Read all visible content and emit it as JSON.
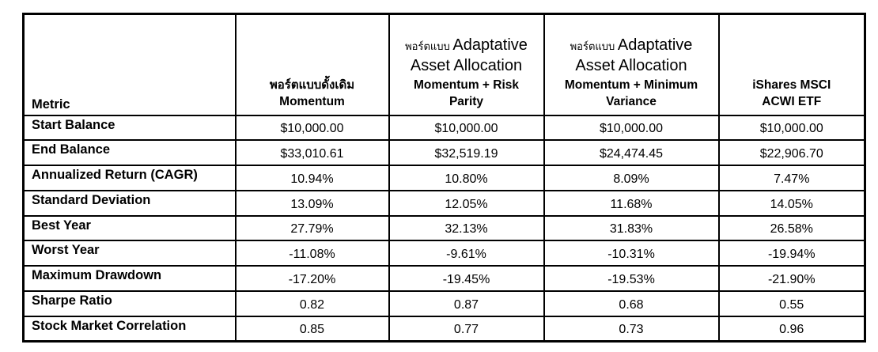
{
  "page": {
    "background_color": "#ffffff",
    "border_color": "#000000",
    "text_color": "#000000"
  },
  "chart_data": {
    "type": "table",
    "metric_header": "Metric",
    "columns": [
      {
        "id": "traditional-momentum",
        "full_label": "พอร์ตแบบดั้งเดิม Momentum",
        "header_lines": [
          {
            "segments": [
              {
                "text": "พอร์ตแบบดั้งเดิม",
                "style": "thai-bold"
              }
            ]
          },
          {
            "segments": [
              {
                "text": "Momentum",
                "style": "bold"
              }
            ]
          }
        ]
      },
      {
        "id": "adaptative-momentum-risk-parity",
        "full_label": "พอร์ตแบบ Adaptative Asset Allocation Momentum + Risk Parity",
        "header_lines": [
          {
            "segments": [
              {
                "text": "พอร์ตแบบ ",
                "style": "thai-small"
              },
              {
                "text": "Adaptative",
                "style": "large"
              }
            ]
          },
          {
            "segments": [
              {
                "text": "Asset Allocation",
                "style": "large"
              }
            ]
          },
          {
            "segments": [
              {
                "text": "Momentum + Risk",
                "style": "bold"
              }
            ]
          },
          {
            "segments": [
              {
                "text": "Parity",
                "style": "bold"
              }
            ]
          }
        ]
      },
      {
        "id": "adaptative-momentum-minimum-variance",
        "full_label": "พอร์ตแบบ Adaptative Asset Allocation Momentum + Minimum Variance",
        "header_lines": [
          {
            "segments": [
              {
                "text": "พอร์ตแบบ ",
                "style": "thai-small"
              },
              {
                "text": "Adaptative",
                "style": "large"
              }
            ]
          },
          {
            "segments": [
              {
                "text": "Asset Allocation",
                "style": "large"
              }
            ]
          },
          {
            "segments": [
              {
                "text": "Momentum + Minimum",
                "style": "bold"
              }
            ]
          },
          {
            "segments": [
              {
                "text": "Variance",
                "style": "bold"
              }
            ]
          }
        ]
      },
      {
        "id": "ishares-msci-acwi-etf",
        "full_label": "iShares MSCI ACWI ETF",
        "header_lines": [
          {
            "segments": [
              {
                "text": "iShares MSCI",
                "style": "bold"
              }
            ]
          },
          {
            "segments": [
              {
                "text": "ACWI ETF",
                "style": "bold"
              }
            ]
          }
        ]
      }
    ],
    "rows": [
      {
        "metric": "Start Balance",
        "values": [
          "$10,000.00",
          "$10,000.00",
          "$10,000.00",
          "$10,000.00"
        ]
      },
      {
        "metric": "End Balance",
        "values": [
          "$33,010.61",
          "$32,519.19",
          "$24,474.45",
          "$22,906.70"
        ]
      },
      {
        "metric": "Annualized Return (CAGR)",
        "values": [
          "10.94%",
          "10.80%",
          "8.09%",
          "7.47%"
        ]
      },
      {
        "metric": "Standard Deviation",
        "values": [
          "13.09%",
          "12.05%",
          "11.68%",
          "14.05%"
        ]
      },
      {
        "metric": "Best Year",
        "values": [
          "27.79%",
          "32.13%",
          "31.83%",
          "26.58%"
        ]
      },
      {
        "metric": "Worst Year",
        "values": [
          "-11.08%",
          "-9.61%",
          "-10.31%",
          "-19.94%"
        ]
      },
      {
        "metric": "Maximum Drawdown",
        "values": [
          "-17.20%",
          "-19.45%",
          "-19.53%",
          "-21.90%"
        ]
      },
      {
        "metric": "Sharpe Ratio",
        "values": [
          "0.82",
          "0.87",
          "0.68",
          "0.55"
        ]
      },
      {
        "metric": "Stock Market Correlation",
        "values": [
          "0.85",
          "0.77",
          "0.73",
          "0.96"
        ]
      }
    ]
  }
}
